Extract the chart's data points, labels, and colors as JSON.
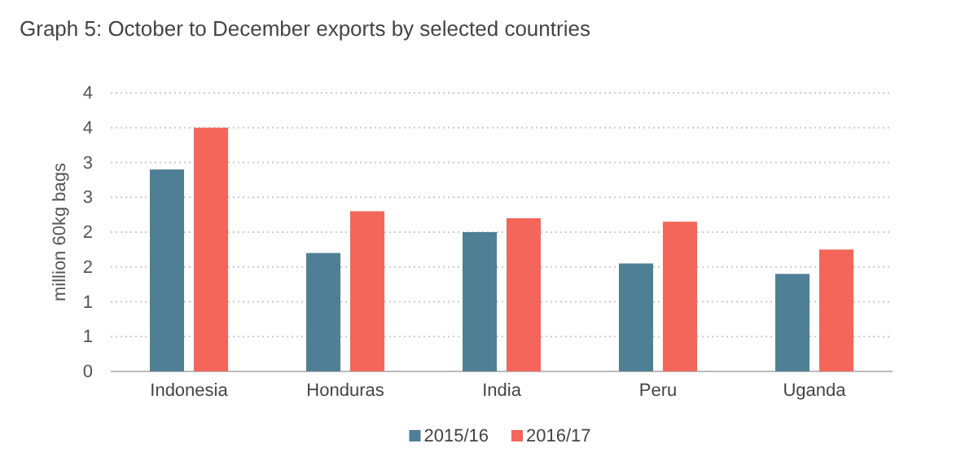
{
  "chart_data": {
    "type": "bar",
    "title": "Graph 5: October to December exports by selected countries",
    "ylabel": "million 60kg bags",
    "categories": [
      "Indonesia",
      "Honduras",
      "India",
      "Peru",
      "Uganda"
    ],
    "series": [
      {
        "name": "2015/16",
        "color": "#4f7f95",
        "values": [
          2.9,
          1.7,
          2.0,
          1.55,
          1.4
        ]
      },
      {
        "name": "2016/17",
        "color": "#f4665a",
        "values": [
          3.5,
          2.3,
          2.2,
          2.15,
          1.75
        ]
      }
    ],
    "ylim": [
      0,
      4
    ],
    "yticks": [
      0,
      {
        "value": 0.5,
        "label": "1"
      },
      1,
      {
        "value": 1.5,
        "label": "2"
      },
      2,
      {
        "value": 2.5,
        "label": "3"
      },
      3,
      {
        "value": 3.5,
        "label": "4"
      },
      4
    ],
    "grid": "y",
    "legend": "bottom"
  }
}
